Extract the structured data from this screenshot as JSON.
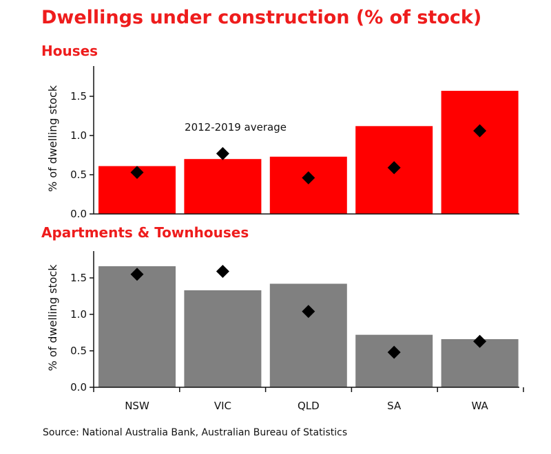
{
  "title": "Dwellings under construction  (% of stock)",
  "source": "Source: National Australia Bank, Australian Bureau of Statistics",
  "colors": {
    "title": "#ee1c1c",
    "houses_bar": "#ff0000",
    "apartments_bar": "#808080",
    "marker": "#000000"
  },
  "chart_data": [
    {
      "type": "bar",
      "title": "Houses",
      "ylabel": "% of dwelling stock",
      "ylim": [
        0,
        1.7
      ],
      "yticks": [
        "0.0",
        "0.5",
        "1.0",
        "1.5"
      ],
      "categories": [
        "NSW",
        "VIC",
        "QLD",
        "SA",
        "WA"
      ],
      "series": [
        {
          "values": [
            0.61,
            0.7,
            0.73,
            1.12,
            1.57
          ]
        },
        {
          "name": "2012-2019 average",
          "marker": "diamond",
          "values": [
            0.53,
            0.77,
            0.46,
            0.59,
            1.06
          ]
        }
      ],
      "annotation": "2012-2019 average",
      "bar_color": "#ff0000"
    },
    {
      "type": "bar",
      "title": "Apartments & Townhouses",
      "ylabel": "% of dwelling stock",
      "ylim": [
        0,
        1.85
      ],
      "yticks": [
        "0.0",
        "0.5",
        "1.0",
        "1.5"
      ],
      "xticks": [
        "NSW",
        "VIC",
        "QLD",
        "SA",
        "WA"
      ],
      "categories": [
        "NSW",
        "VIC",
        "QLD",
        "SA",
        "WA"
      ],
      "series": [
        {
          "values": [
            1.66,
            1.33,
            1.42,
            0.72,
            0.66
          ]
        },
        {
          "name": "2012-2019 average",
          "marker": "diamond",
          "values": [
            1.55,
            1.59,
            1.04,
            0.48,
            0.63
          ]
        }
      ],
      "bar_color": "#808080"
    }
  ]
}
